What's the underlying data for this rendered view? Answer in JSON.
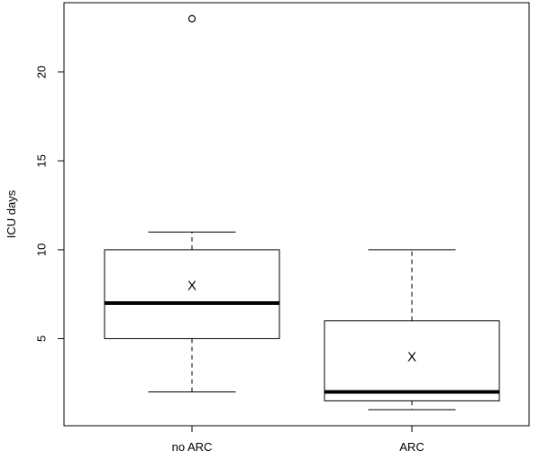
{
  "chart_data": {
    "type": "boxplot",
    "title": "",
    "xlabel": "",
    "ylabel": "ICU days",
    "ylim": [
      0.1,
      23.9
    ],
    "yticks": [
      5,
      10,
      15,
      20
    ],
    "grid": false,
    "legend": "none",
    "mean_marker": "X",
    "groups": [
      {
        "label": "no ARC",
        "whisker_low": 2,
        "q1": 5,
        "median": 7,
        "q3": 10,
        "whisker_high": 11,
        "mean": 8,
        "outliers": [
          23
        ]
      },
      {
        "label": "ARC",
        "whisker_low": 1,
        "q1": 1.5,
        "median": 2,
        "q3": 6,
        "whisker_high": 10,
        "mean": 4,
        "outliers": []
      }
    ]
  }
}
